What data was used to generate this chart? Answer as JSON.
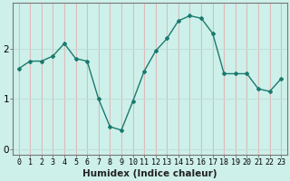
{
  "x": [
    0,
    1,
    2,
    3,
    4,
    5,
    6,
    7,
    8,
    9,
    10,
    11,
    12,
    13,
    14,
    15,
    16,
    17,
    18,
    19,
    20,
    21,
    22,
    23
  ],
  "y": [
    1.6,
    1.75,
    1.75,
    1.85,
    2.1,
    1.8,
    1.75,
    1.0,
    0.45,
    0.38,
    0.95,
    1.55,
    1.95,
    2.2,
    2.55,
    2.65,
    2.6,
    2.3,
    1.5,
    1.5,
    1.5,
    1.2,
    1.15,
    1.4
  ],
  "line_color": "#1a7a6e",
  "marker": "D",
  "marker_size": 2.0,
  "bg_color": "#cef0ea",
  "grid_color_h": "#c0ddd8",
  "grid_color_v": "#e8b0b0",
  "xlabel": "Humidex (Indice chaleur)",
  "xlabel_fontsize": 7.5,
  "yticks": [
    0,
    1,
    2
  ],
  "xlim": [
    -0.5,
    23.5
  ],
  "ylim": [
    -0.1,
    2.9
  ],
  "line_width": 1.0,
  "tick_fontsize": 6.0,
  "ytick_fontsize": 7.5
}
